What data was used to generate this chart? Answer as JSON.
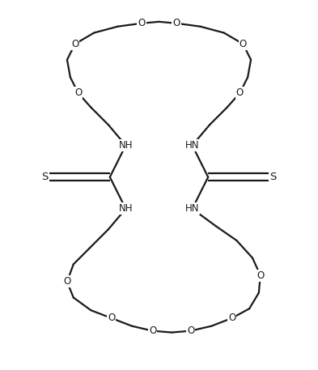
{
  "background_color": "#ffffff",
  "line_color": "#1a1a1a",
  "label_color": "#1a1a1a",
  "line_width": 1.6,
  "font_size": 8.5,
  "figsize": [
    3.93,
    4.57
  ],
  "dpi": 100,
  "xlim": [
    -5.0,
    5.0
  ],
  "ylim": [
    -5.2,
    5.2
  ]
}
